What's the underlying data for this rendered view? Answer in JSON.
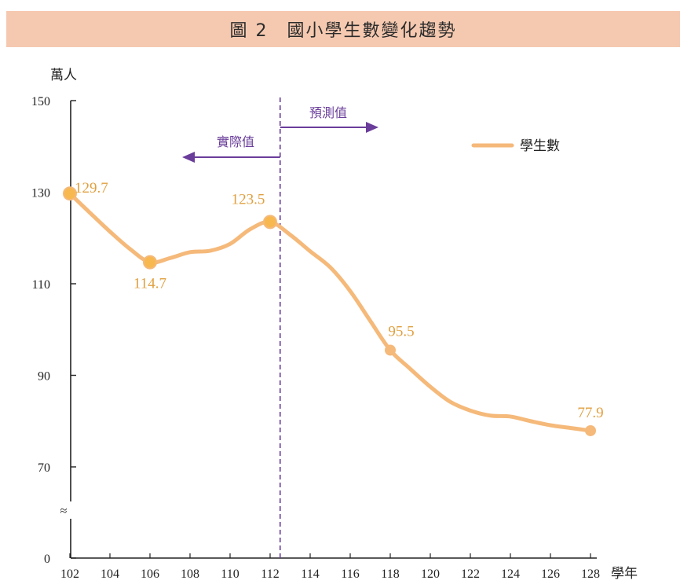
{
  "chart_data": {
    "type": "line",
    "title": "圖 2　國小學生數變化趨勢",
    "ylabel": "萬人",
    "xlabel": "學年",
    "x": [
      102,
      103,
      104,
      105,
      106,
      107,
      108,
      109,
      110,
      111,
      112,
      113,
      114,
      115,
      116,
      117,
      118,
      119,
      120,
      121,
      122,
      123,
      124,
      125,
      126,
      127,
      128
    ],
    "series": [
      {
        "name": "學生數",
        "color": "#f5b97a",
        "values": [
          129.7,
          125.5,
          121.4,
          117.6,
          114.7,
          115.6,
          116.9,
          117.2,
          118.7,
          121.9,
          123.5,
          120.7,
          117.1,
          113.6,
          108.4,
          101.9,
          95.5,
          91.4,
          87.5,
          84.2,
          82.3,
          81.2,
          81.0,
          80.0,
          79.1,
          78.5,
          77.9
        ]
      }
    ],
    "labeled_points": [
      {
        "x": 102,
        "value": 129.7,
        "label": "129.7"
      },
      {
        "x": 106,
        "value": 114.7,
        "label": "114.7"
      },
      {
        "x": 112,
        "value": 123.5,
        "label": "123.5"
      },
      {
        "x": 118,
        "value": 95.5,
        "label": "95.5"
      },
      {
        "x": 128,
        "value": 77.9,
        "label": "77.9"
      }
    ],
    "x_ticks": [
      "102",
      "104",
      "106",
      "108",
      "110",
      "112",
      "114",
      "116",
      "118",
      "120",
      "122",
      "124",
      "126",
      "128"
    ],
    "y_ticks": [
      "0",
      "70",
      "90",
      "110",
      "130",
      "150"
    ],
    "y_tick_values": [
      0,
      70,
      90,
      110,
      130,
      150
    ],
    "ylim": [
      0,
      150
    ],
    "axis_break_symbol": "≈",
    "divider_x": 112.5,
    "annotations": {
      "actual": "實際值",
      "forecast": "預測值"
    },
    "annotation_color": "#6a3d9a",
    "legend": "學生數",
    "legend_position": "top-right"
  }
}
